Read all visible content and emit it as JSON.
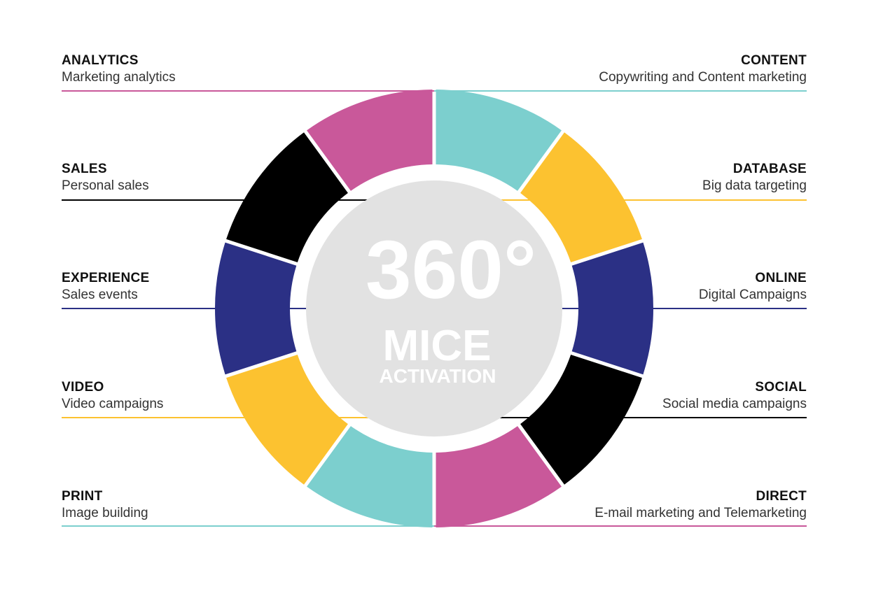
{
  "center": {
    "big": "360°",
    "line1": "MICE",
    "line2": "ACTIVATION"
  },
  "left_items": [
    {
      "title": "ANALYTICS",
      "subtitle": "Marketing analytics",
      "color": "#C9589A"
    },
    {
      "title": "SALES",
      "subtitle": "Personal sales",
      "color": "#000000"
    },
    {
      "title": "EXPERIENCE",
      "subtitle": "Sales events",
      "color": "#2B3085"
    },
    {
      "title": "VIDEO",
      "subtitle": "Video campaigns",
      "color": "#FCC230"
    },
    {
      "title": "PRINT",
      "subtitle": "Image building",
      "color": "#7CCFCE"
    }
  ],
  "right_items": [
    {
      "title": "CONTENT",
      "subtitle": "Copywriting and Content marketing",
      "color": "#7CCFCE"
    },
    {
      "title": "DATABASE",
      "subtitle": "Big data targeting",
      "color": "#FCC230"
    },
    {
      "title": "ONLINE",
      "subtitle": "Digital Campaigns",
      "color": "#2B3085"
    },
    {
      "title": "SOCIAL",
      "subtitle": "Social media campaigns",
      "color": "#000000"
    },
    {
      "title": "DIRECT",
      "subtitle": "E-mail marketing and Telemarketing",
      "color": "#C9589A"
    }
  ],
  "colors": {
    "center_disc": "#E2E2E2",
    "center_text": "#FFFFFF",
    "background": "#FFFFFF"
  }
}
